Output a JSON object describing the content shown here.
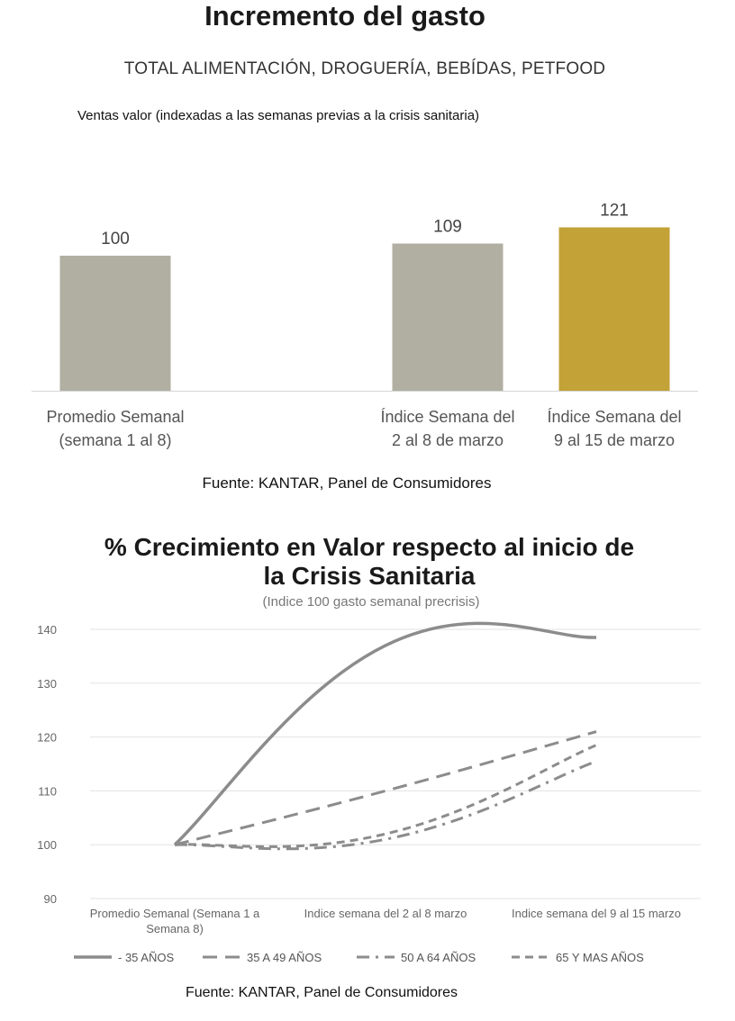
{
  "header": {
    "title": "Incremento del gasto",
    "subtitle": "TOTAL ALIMENTACIÓN, DROGUERÍA, BEBÍDAS, PETFOOD",
    "chart_label": "Ventas valor (indexadas a las semanas previas a la crisis sanitaria)"
  },
  "source1": "Fuente: KANTAR, Panel de Consumidores",
  "chart2_header": {
    "title_line1": "% Crecimiento en Valor respecto al inicio de",
    "title_line2": "la Crisis Sanitaria",
    "subtitle": "(Indice 100 gasto semanal precrisis)"
  },
  "source2": "Fuente: KANTAR, Panel de Consumidores",
  "colors": {
    "bar_grey": "#b1afa2",
    "bar_gold": "#c3a238",
    "line_grey": "#8c8c8c",
    "grid": "#e3e3e3"
  },
  "chart_data": [
    {
      "type": "bar",
      "title": "Incremento del gasto",
      "subtitle": "TOTAL ALIMENTACIÓN, DROGUERÍA, BEBÍDAS, PETFOOD",
      "ylabel": "Ventas valor (indexadas a las semanas previas a la crisis sanitaria)",
      "categories": [
        [
          "Promedio Semanal",
          "(semana 1 al 8)"
        ],
        [
          "Índice Semana del",
          "2 al 8 de marzo"
        ],
        [
          "Índice Semana del",
          "9 al 15 de marzo"
        ]
      ],
      "values": [
        100,
        109,
        121
      ],
      "data_labels": [
        "100",
        "109",
        "121"
      ],
      "bar_colors": [
        "#b1afa2",
        "#b1afa2",
        "#c3a238"
      ],
      "ylim": [
        0,
        130
      ],
      "grid": false
    },
    {
      "type": "line",
      "title": "% Crecimiento en Valor respecto al inicio de la Crisis Sanitaria",
      "subtitle": "(Indice 100 gasto semanal precrisis)",
      "categories": [
        [
          "Promedio Semanal (Semana 1 a",
          "Semana 8)"
        ],
        [
          "Indice semana del 2 al 8 marzo"
        ],
        [
          "Indice semana  del 9 al 15 marzo"
        ]
      ],
      "ylim": [
        90,
        140
      ],
      "yticks": [
        90,
        100,
        110,
        120,
        130,
        140
      ],
      "grid": true,
      "legend_position": "bottom",
      "series": [
        {
          "name": "- 35 AÑOS",
          "values": [
            100,
            137,
            138.5
          ],
          "dash": "solid",
          "width": 3.5
        },
        {
          "name": "35 A 49 AÑOS",
          "values": [
            100,
            110,
            121
          ],
          "dash": "dash",
          "width": 3
        },
        {
          "name": "50 A 64 AÑOS",
          "values": [
            100,
            101,
            115.5
          ],
          "dash": "dashdot",
          "width": 3
        },
        {
          "name": "65 Y MAS AÑOS",
          "values": [
            100,
            102,
            118.5
          ],
          "dash": "shortdash",
          "width": 3
        }
      ]
    }
  ]
}
